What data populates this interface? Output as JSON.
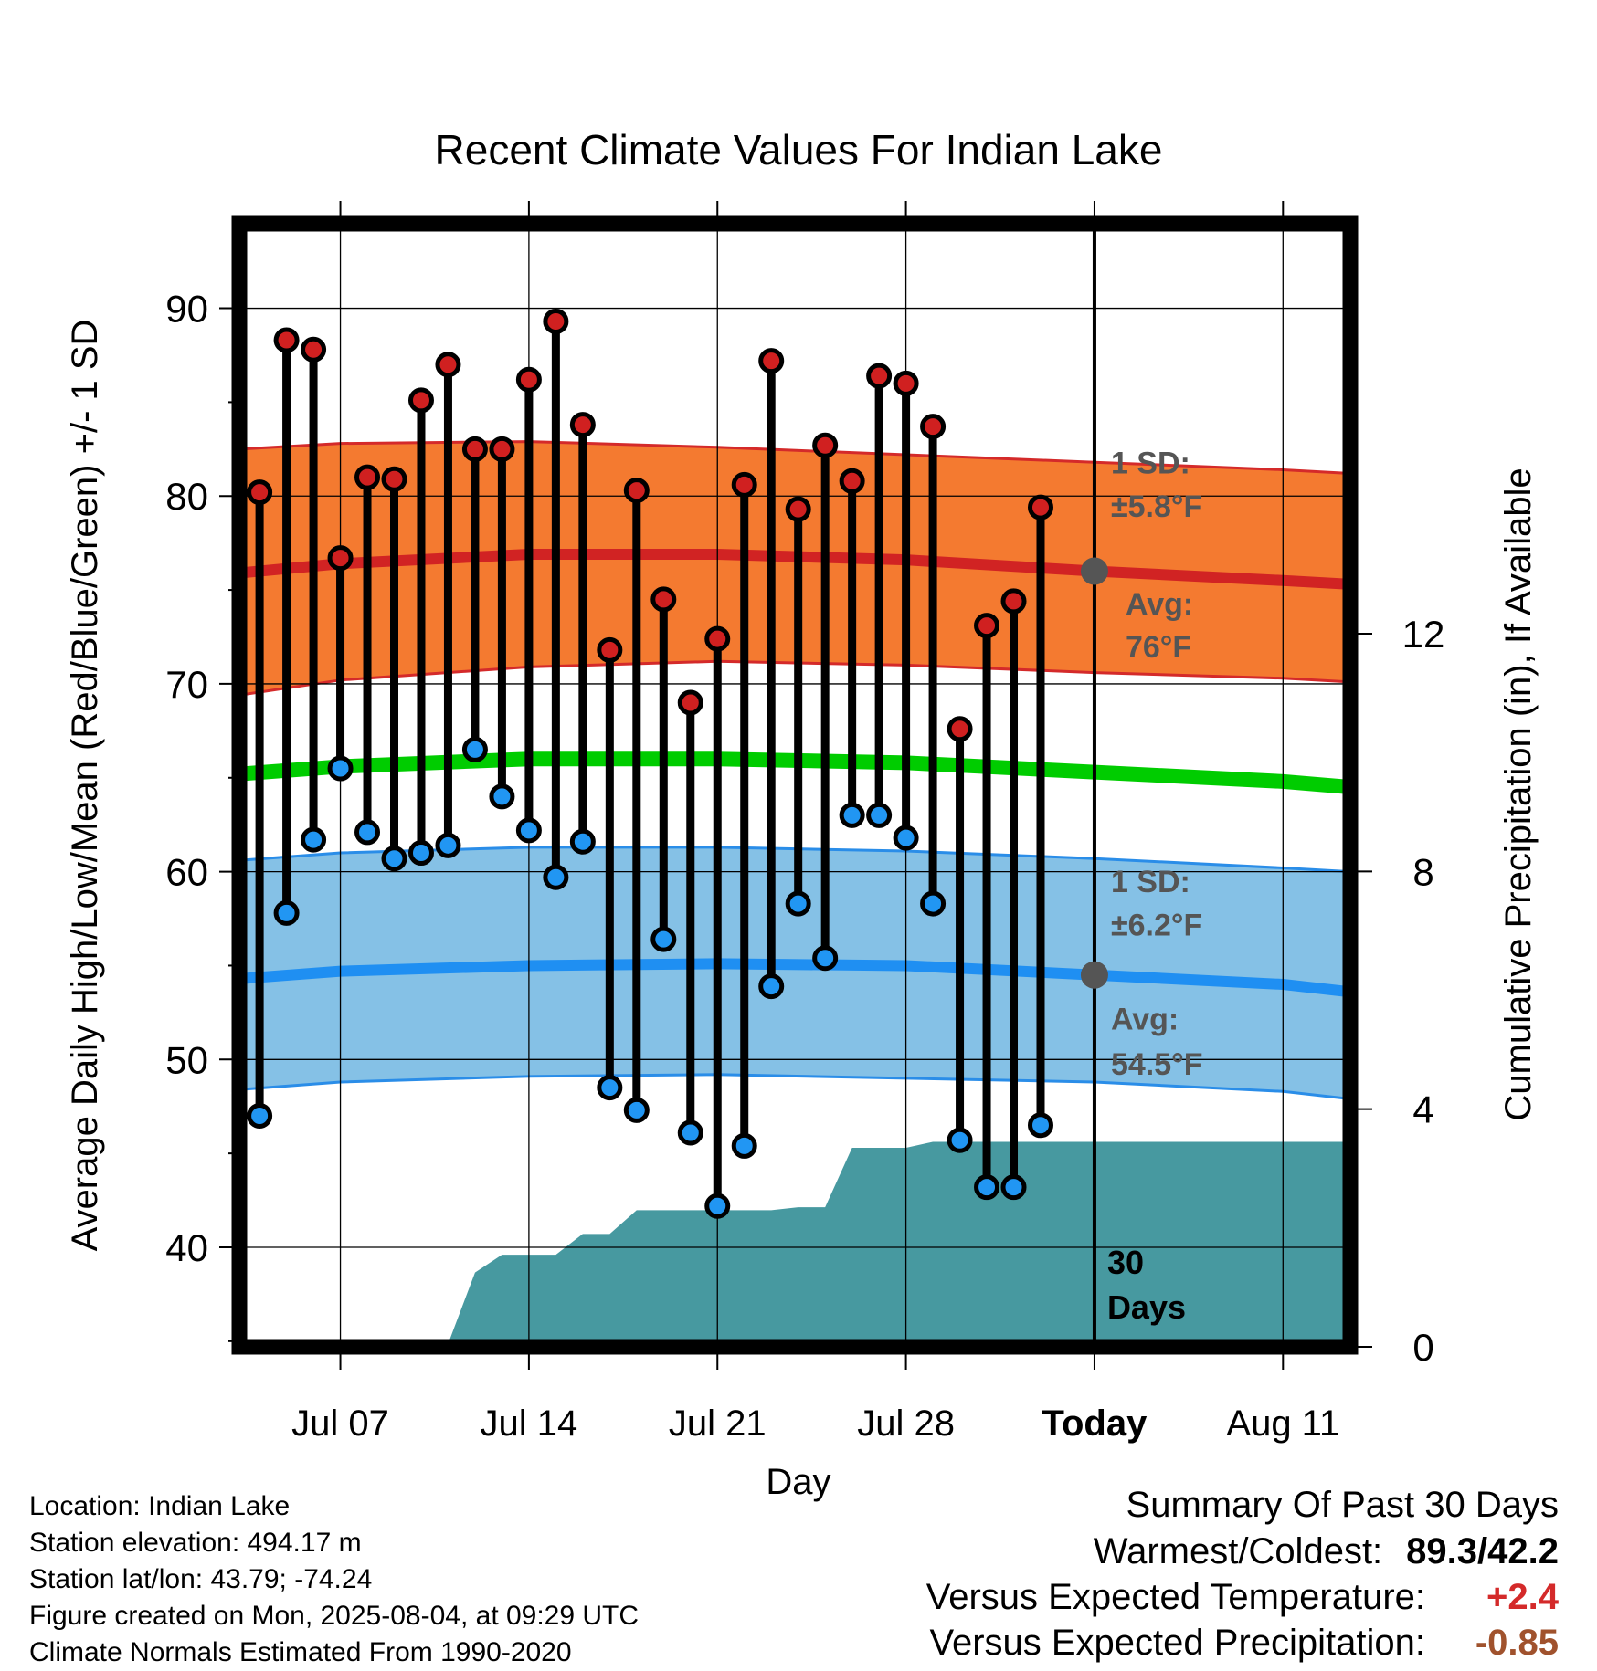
{
  "chart_data": {
    "type": "line",
    "title": "Recent Climate Values For Indian Lake",
    "xlabel": "Day",
    "ylabel": "Average Daily High/Low/Mean (Red/Blue/Green) +/- 1 SD",
    "y2label": "Cumulative Precipitation (in), If Available",
    "x_tick_labels": [
      "Jul 07",
      "Jul 14",
      "Jul 21",
      "Jul 28",
      "Today",
      "Aug 11"
    ],
    "x_tick_days": [
      7,
      14,
      21,
      28,
      35,
      42
    ],
    "x_range": [
      3.25,
      44.5
    ],
    "ylim": [
      34.7,
      94.5
    ],
    "y_ticks": [
      40,
      50,
      60,
      70,
      80,
      90
    ],
    "y2lim": [
      0,
      18.9
    ],
    "y2_ticks": [
      0,
      4,
      8,
      12
    ],
    "today_day": 35,
    "today_label_line1": "30",
    "today_label_line2": "Days",
    "days": [
      4,
      5,
      6,
      7,
      8,
      9,
      10,
      11,
      12,
      13,
      14,
      15,
      16,
      17,
      18,
      19,
      20,
      21,
      22,
      23,
      24,
      25,
      26,
      27,
      28,
      29,
      30,
      31,
      32,
      33,
      34
    ],
    "observed_high": [
      80.2,
      88.3,
      87.8,
      76.7,
      81.0,
      80.9,
      85.1,
      87.0,
      82.5,
      82.5,
      86.2,
      89.3,
      83.8,
      71.8,
      80.3,
      74.5,
      69.0,
      72.4,
      80.6,
      87.2,
      79.3,
      82.7,
      80.8,
      86.4,
      86.0,
      83.7,
      67.6,
      73.1,
      74.4,
      79.4
    ],
    "observed_low": [
      47.0,
      57.8,
      61.7,
      65.5,
      62.1,
      60.7,
      61.0,
      61.4,
      66.5,
      64.0,
      62.2,
      59.7,
      61.6,
      48.5,
      47.3,
      56.4,
      46.1,
      42.2,
      45.4,
      53.9,
      58.3,
      55.4,
      63.0,
      63.0,
      61.8,
      58.3,
      45.7,
      43.2,
      43.2,
      46.5
    ],
    "observed_days": [
      4,
      5,
      6,
      7,
      8,
      9,
      10,
      11,
      12,
      13,
      14,
      15,
      16,
      17,
      18,
      19,
      20,
      21,
      22,
      23,
      24,
      25,
      26,
      27,
      28,
      29,
      30,
      31,
      32,
      33
    ],
    "normal_days": [
      3.25,
      7,
      14,
      21,
      28,
      35,
      42,
      44.5
    ],
    "normal_high": [
      75.9,
      76.4,
      76.9,
      76.9,
      76.6,
      76.0,
      75.5,
      75.3
    ],
    "normal_high_sd_upper": [
      82.5,
      82.8,
      82.9,
      82.6,
      82.2,
      81.8,
      81.4,
      81.2
    ],
    "normal_high_sd_lower": [
      69.4,
      70.2,
      70.9,
      71.2,
      71.0,
      70.6,
      70.3,
      70.1
    ],
    "normal_mean": [
      65.2,
      65.6,
      66.0,
      66.0,
      65.8,
      65.3,
      64.8,
      64.5
    ],
    "normal_low": [
      54.3,
      54.7,
      55.0,
      55.1,
      55.0,
      54.5,
      54.0,
      53.6
    ],
    "normal_low_sd_upper": [
      60.6,
      61.0,
      61.3,
      61.3,
      61.1,
      60.7,
      60.2,
      60.0
    ],
    "normal_low_sd_lower": [
      48.4,
      48.8,
      49.1,
      49.2,
      49.0,
      48.8,
      48.3,
      47.9
    ],
    "precip_cumulative_days": [
      3.25,
      7.5,
      9.5,
      11,
      12,
      13,
      15,
      16,
      17,
      18,
      19,
      20,
      21,
      22,
      23,
      24,
      25,
      26,
      27,
      28,
      29,
      30,
      31,
      32,
      33,
      34,
      35,
      44.5
    ],
    "precip_cumulative": [
      0,
      0,
      0.05,
      0.05,
      1.25,
      1.55,
      1.55,
      1.9,
      1.9,
      2.3,
      2.3,
      2.3,
      2.3,
      2.3,
      2.3,
      2.35,
      2.35,
      3.35,
      3.35,
      3.35,
      3.45,
      3.45,
      3.45,
      3.45,
      3.45,
      3.45,
      3.45,
      3.45
    ],
    "high_sd_label_line1": "1 SD:",
    "high_sd_label_line2": "±5.8°F",
    "high_avg_label_line1": "Avg:",
    "high_avg_label_line2": "76°F",
    "low_sd_label_line1": "1 SD:",
    "low_sd_label_line2": "±6.2°F",
    "low_avg_label_line1": "Avg:",
    "low_avg_label_line2": "54.5°F",
    "colors": {
      "high_band": "#f47a30",
      "high_band_edge": "#d42a2a",
      "high_line": "#d12323",
      "mean_line": "#00cc00",
      "low_band": "#85c1e6",
      "low_band_edge": "#2a8de8",
      "low_line": "#1f8ff2",
      "precip_fill": "#4799a0",
      "high_marker": "#d02020",
      "low_marker": "#2196f3",
      "annotation_text": "#555555",
      "today_marker": "#555555"
    }
  },
  "info": {
    "location": "Location: Indian Lake",
    "elevation": "Station elevation: 494.17 m",
    "latlon": "Station lat/lon: 43.79; -74.24",
    "created": "Figure created on Mon, 2025-08-04, at 09:29 UTC",
    "normals": "Climate Normals Estimated From 1990-2020"
  },
  "summary": {
    "heading": "Summary Of Past 30 Days",
    "warmest_label": "Warmest/Coldest:",
    "warmest_value": "89.3/42.2",
    "temp_label": "Versus Expected Temperature:",
    "temp_value": "+2.4",
    "temp_color": "#d42a2a",
    "precip_label": "Versus Expected Precipitation:",
    "precip_value": "-0.85",
    "precip_color": "#a0522d"
  }
}
